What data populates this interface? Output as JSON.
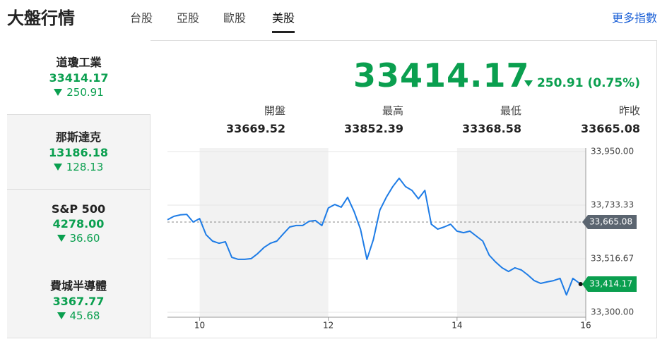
{
  "header": {
    "title": "大盤行情",
    "tabs": [
      "台股",
      "亞股",
      "歐股",
      "美股"
    ],
    "more": "更多指數"
  },
  "sidebar": [
    {
      "name": "道瓊工業",
      "value": "33414.17",
      "change": "250.91"
    },
    {
      "name": "那斯達克",
      "value": "13186.18",
      "change": "128.13"
    },
    {
      "name": "S&P 500",
      "value": "4278.00",
      "change": "36.60"
    },
    {
      "name": "費城半導體",
      "value": "3367.77",
      "change": "45.68"
    }
  ],
  "quote": {
    "value": "33414.17",
    "change": "250.91 (0.75%)",
    "stats": [
      {
        "label": "開盤",
        "value": "33669.52"
      },
      {
        "label": "最高",
        "value": "33852.39"
      },
      {
        "label": "最低",
        "value": "33368.58"
      },
      {
        "label": "昨收",
        "value": "33665.08"
      }
    ]
  },
  "chart_data": {
    "type": "line",
    "color": "#1e7ce6",
    "x": [
      9.5,
      9.6,
      9.7,
      9.8,
      9.9,
      10.0,
      10.1,
      10.2,
      10.3,
      10.4,
      10.5,
      10.6,
      10.7,
      10.8,
      10.9,
      11.0,
      11.1,
      11.2,
      11.3,
      11.4,
      11.5,
      11.6,
      11.7,
      11.8,
      11.9,
      12.0,
      12.1,
      12.2,
      12.3,
      12.4,
      12.5,
      12.6,
      12.7,
      12.8,
      12.9,
      13.0,
      13.1,
      13.2,
      13.3,
      13.4,
      13.5,
      13.6,
      13.7,
      13.8,
      13.9,
      14.0,
      14.1,
      14.2,
      14.3,
      14.4,
      14.5,
      14.6,
      14.7,
      14.8,
      14.9,
      15.0,
      15.1,
      15.2,
      15.3,
      15.4,
      15.5,
      15.6,
      15.7,
      15.8,
      15.92
    ],
    "values": [
      33674,
      33688,
      33694,
      33696,
      33665,
      33679,
      33614,
      33588,
      33579,
      33585,
      33522,
      33514,
      33514,
      33517,
      33537,
      33562,
      33579,
      33588,
      33617,
      33645,
      33651,
      33651,
      33668,
      33671,
      33651,
      33722,
      33736,
      33725,
      33765,
      33708,
      33636,
      33514,
      33594,
      33713,
      33765,
      33808,
      33842,
      33808,
      33793,
      33759,
      33793,
      33656,
      33636,
      33645,
      33656,
      33628,
      33622,
      33628,
      33608,
      33588,
      33531,
      33503,
      33480,
      33465,
      33480,
      33471,
      33451,
      33428,
      33417,
      33423,
      33428,
      33437,
      33370,
      33437,
      33414.17
    ],
    "xlim": [
      9.5,
      16
    ],
    "xticks": [
      10,
      12,
      14,
      16
    ],
    "ylim": [
      33300,
      33950
    ],
    "yticks": [
      {
        "value": 33300,
        "label": "33,300.00"
      },
      {
        "value": 33516.67,
        "label": "33,516.67"
      },
      {
        "value": 33733.33,
        "label": "33,733.33"
      },
      {
        "value": 33950,
        "label": "33,950.00"
      }
    ],
    "reference_line": {
      "value": 33665.08,
      "label": "33,665.08"
    },
    "last_point_label": "33,414.17"
  }
}
